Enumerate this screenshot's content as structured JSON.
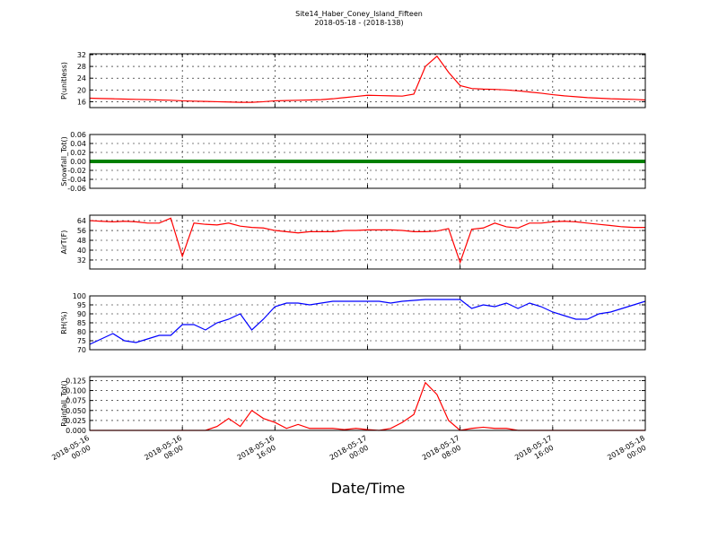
{
  "title": "Site14_Haber_Coney_Island_Fifteen",
  "subtitle": "2018-05-18 - (2018-138)",
  "xlabel": "Date/Time",
  "x": [
    "2018-05-16 00:00",
    "2018-05-16 01:00",
    "2018-05-16 02:00",
    "2018-05-16 03:00",
    "2018-05-16 04:00",
    "2018-05-16 05:00",
    "2018-05-16 06:00",
    "2018-05-16 07:00",
    "2018-05-16 08:00",
    "2018-05-16 09:00",
    "2018-05-16 10:00",
    "2018-05-16 11:00",
    "2018-05-16 12:00",
    "2018-05-16 13:00",
    "2018-05-16 14:00",
    "2018-05-16 15:00",
    "2018-05-16 16:00",
    "2018-05-16 17:00",
    "2018-05-16 18:00",
    "2018-05-16 19:00",
    "2018-05-16 20:00",
    "2018-05-16 21:00",
    "2018-05-16 22:00",
    "2018-05-16 23:00",
    "2018-05-17 00:00",
    "2018-05-17 01:00",
    "2018-05-17 02:00",
    "2018-05-17 03:00",
    "2018-05-17 04:00",
    "2018-05-17 05:00",
    "2018-05-17 06:00",
    "2018-05-17 07:00",
    "2018-05-17 08:00",
    "2018-05-17 09:00",
    "2018-05-17 10:00",
    "2018-05-17 11:00",
    "2018-05-17 12:00",
    "2018-05-17 13:00",
    "2018-05-17 14:00",
    "2018-05-17 15:00",
    "2018-05-17 16:00",
    "2018-05-17 17:00",
    "2018-05-17 18:00",
    "2018-05-17 19:00",
    "2018-05-17 20:00",
    "2018-05-17 21:00",
    "2018-05-17 22:00",
    "2018-05-17 23:00",
    "2018-05-18 00:00"
  ],
  "xlim": [
    "2018-05-16 00:00",
    "2018-05-18 00:00"
  ],
  "xticks": [
    "2018-05-16 00:00",
    "2018-05-16 08:00",
    "2018-05-16 16:00",
    "2018-05-17 00:00",
    "2018-05-17 08:00",
    "2018-05-17 16:00",
    "2018-05-18 00:00"
  ],
  "grid": true,
  "chart_data": [
    {
      "type": "line",
      "ylabel": "P(unitless)",
      "ylim": [
        14,
        32.3
      ],
      "yticks": [
        16,
        20,
        24,
        28,
        32
      ],
      "series": [
        {
          "color": "#ff0000",
          "values": [
            17.2,
            17.1,
            17,
            16.9,
            16.8,
            16.7,
            16.6,
            16.5,
            16.3,
            16.2,
            16.1,
            16,
            15.9,
            15.8,
            15.8,
            16,
            16.3,
            16.4,
            16.5,
            16.6,
            16.7,
            17,
            17.4,
            17.8,
            18.2,
            18.1,
            18,
            17.9,
            18.6,
            28,
            31.5,
            26,
            21.5,
            20.5,
            20.3,
            20.2,
            20,
            19.7,
            19.3,
            18.9,
            18.4,
            18,
            17.7,
            17.4,
            17.2,
            17,
            16.9,
            16.8,
            16.6
          ]
        }
      ]
    },
    {
      "type": "line",
      "ylabel": "Snowfall_Tot()",
      "ylim": [
        -0.06,
        0.06
      ],
      "yticks": [
        {
          "value": -0.06,
          "label": "-0.06"
        },
        {
          "value": -0.04,
          "label": "-0.04"
        },
        {
          "value": -0.02,
          "label": "-0.02"
        },
        {
          "value": 0,
          "label": "0.00"
        },
        {
          "value": 0.02,
          "label": "0.02"
        },
        {
          "value": 0.04,
          "label": "0.04"
        },
        {
          "value": 0.06,
          "label": "0.06"
        }
      ],
      "series": [
        {
          "color": "#008000",
          "values": [
            0,
            0,
            0,
            0,
            0,
            0,
            0,
            0,
            0,
            0,
            0,
            0,
            0,
            0,
            0,
            0,
            0,
            0,
            0,
            0,
            0,
            0,
            0,
            0,
            0,
            0,
            0,
            0,
            0,
            0,
            0,
            0,
            0,
            0,
            0,
            0,
            0,
            0,
            0,
            0,
            0,
            0,
            0,
            0,
            0,
            0,
            0,
            0,
            0
          ]
        }
      ]
    },
    {
      "type": "line",
      "ylabel": "AirT(F)",
      "ylim": [
        24.7,
        68.4
      ],
      "yticks": [
        32,
        40,
        48,
        56,
        64
      ],
      "series": [
        {
          "color": "#ff0000",
          "values": [
            64,
            63.5,
            63,
            63.5,
            63,
            62,
            62,
            66,
            35,
            62,
            61,
            60.5,
            62,
            59.5,
            58.5,
            58,
            56,
            55,
            54,
            55,
            55,
            55,
            56,
            56,
            56.5,
            56.5,
            56.5,
            56,
            55,
            55,
            55.5,
            57.5,
            30,
            57,
            58,
            62,
            59,
            58,
            62,
            62,
            63,
            63.5,
            63,
            62,
            61,
            60,
            59,
            58.5,
            58.5
          ]
        }
      ]
    },
    {
      "type": "line",
      "ylabel": "RH(%)",
      "ylim": [
        70,
        100
      ],
      "yticks": [
        70,
        75,
        80,
        85,
        90,
        95,
        100
      ],
      "series": [
        {
          "color": "#0000ff",
          "values": [
            73,
            76,
            79,
            75,
            74,
            76,
            78,
            78,
            84,
            84,
            81,
            85,
            87,
            90,
            81,
            87,
            94,
            96,
            96,
            95,
            96,
            97,
            97,
            97,
            97,
            97,
            96,
            97,
            97.5,
            98,
            98,
            98,
            98,
            93,
            95,
            94,
            96,
            93,
            96,
            94,
            91,
            89,
            87,
            87,
            90,
            91,
            93,
            95,
            97
          ]
        }
      ]
    },
    {
      "type": "line",
      "ylabel": "Rainfall_Tot()",
      "ylim": [
        0,
        0.135
      ],
      "yticks": [
        {
          "value": 0,
          "label": "0.000"
        },
        {
          "value": 0.025,
          "label": "0.025"
        },
        {
          "value": 0.05,
          "label": "0.050"
        },
        {
          "value": 0.075,
          "label": "0.075"
        },
        {
          "value": 0.1,
          "label": "0.100"
        },
        {
          "value": 0.125,
          "label": "0.125"
        }
      ],
      "series": [
        {
          "color": "#ff0000",
          "values": [
            0,
            0,
            0,
            0,
            0,
            0,
            0,
            0,
            0,
            0,
            0,
            0.01,
            0.03,
            0.01,
            0.05,
            0.03,
            0.02,
            0.005,
            0.015,
            0.005,
            0.005,
            0.005,
            0.002,
            0.005,
            0.002,
            0,
            0.005,
            0.02,
            0.04,
            0.12,
            0.09,
            0.025,
            0,
            0.005,
            0.008,
            0.005,
            0.005,
            0,
            0,
            0,
            0,
            0,
            0,
            0,
            0,
            0,
            0,
            0,
            0
          ]
        }
      ]
    }
  ]
}
